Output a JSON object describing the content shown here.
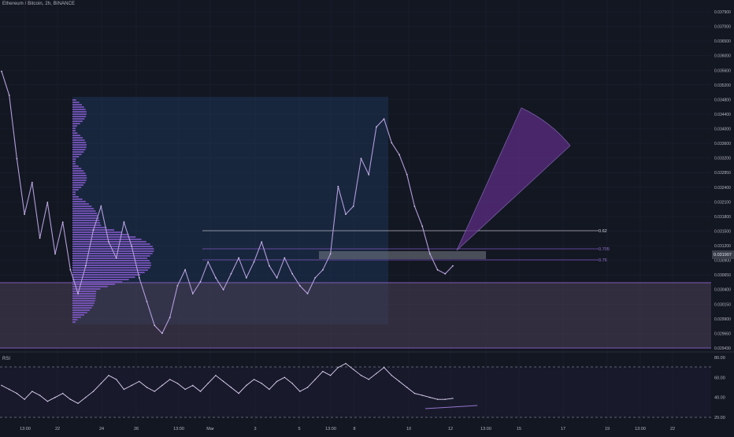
{
  "header": {
    "symbol_title": "Ethereum / Bitcoin, 2h, BINANCE"
  },
  "rsi_panel": {
    "title": "RSI",
    "axis_ticks": [
      "80.00",
      "60.00",
      "40.00",
      "20.00"
    ]
  },
  "colors": {
    "background": "#131722",
    "price_line": "#b39ddb",
    "volume_profile": "#7e57c2",
    "support_zone": "#4a3f55",
    "fib_line": "#b2b5be",
    "fan_fill": "#5b2c83",
    "rsi_line": "#e1d5f5",
    "rsi_band": "#787b86"
  },
  "chart_data": [
    {
      "type": "line",
      "series": [
        {
          "values": [
            0.0364,
            0.0358,
            0.0342,
            0.0328,
            0.0336,
            0.0322,
            0.0331,
            0.0318,
            0.0326,
            0.0314,
            0.0308,
            0.0315,
            0.0324,
            0.033,
            0.0321,
            0.0317,
            0.0326,
            0.032,
            0.0312,
            0.0306,
            0.03,
            0.0298,
            0.0302,
            0.031,
            0.0314,
            0.0308,
            0.0311,
            0.0316,
            0.0312,
            0.0309,
            0.0313,
            0.0317,
            0.0312,
            0.0316,
            0.0321,
            0.0315,
            0.0312,
            0.0317,
            0.0313,
            0.031,
            0.0308,
            0.0312,
            0.0314,
            0.0318,
            0.0335,
            0.0328,
            0.033,
            0.0342,
            0.0338,
            0.035,
            0.0352,
            0.0346,
            0.0343,
            0.0338,
            0.033,
            0.0325,
            0.0318,
            0.0314,
            0.0313,
            0.0315
          ]
        }
      ],
      "y_axis_ticks": [
        "0.037900",
        "0.037000",
        "0.036500",
        "0.036000",
        "0.035600",
        "0.035200",
        "0.034800",
        "0.034400",
        "0.034000",
        "0.033600",
        "0.033200",
        "0.032850",
        "0.032400",
        "0.032100",
        "0.031800",
        "0.031500",
        "0.031200",
        "0.030900",
        "0.030650",
        "0.030400",
        "0.030150",
        "0.029900",
        "0.029660",
        "0.029430"
      ],
      "x_axis_ticks": [
        "13:00",
        "22",
        "24",
        "26",
        "13:00",
        "Mar",
        "3",
        "5",
        "13:00",
        "8",
        "10",
        "12",
        "13:00",
        "15",
        "17",
        "19",
        "13:00",
        "22"
      ],
      "current_price_label": "0.031907",
      "annotations": {
        "fib_levels": [
          "0.62",
          "0.705",
          "0.76"
        ]
      }
    },
    {
      "type": "line",
      "series": [
        {
          "name": "RSI",
          "values": [
            52,
            48,
            44,
            38,
            46,
            42,
            36,
            40,
            44,
            38,
            34,
            40,
            46,
            54,
            62,
            58,
            48,
            52,
            56,
            50,
            46,
            52,
            58,
            54,
            48,
            52,
            46,
            54,
            62,
            56,
            50,
            44,
            52,
            58,
            54,
            48,
            56,
            60,
            54,
            46,
            50,
            58,
            66,
            62,
            70,
            74,
            68,
            62,
            58,
            64,
            70,
            62,
            56,
            50,
            44,
            42,
            40,
            38,
            38,
            39
          ]
        }
      ],
      "ylim": [
        20,
        80
      ]
    }
  ]
}
